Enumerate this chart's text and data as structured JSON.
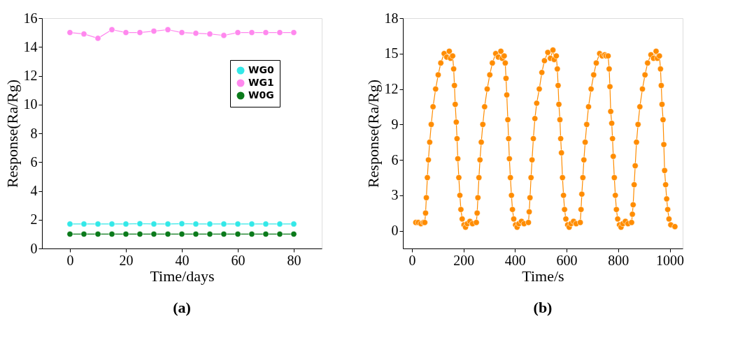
{
  "chart_data": [
    {
      "type": "line",
      "xlabel": "Time/days",
      "ylabel": "Response(Ra/Rg)",
      "x": [
        0,
        5,
        10,
        15,
        20,
        25,
        30,
        35,
        40,
        45,
        50,
        55,
        60,
        65,
        70,
        75,
        80
      ],
      "series": [
        {
          "name": "WG0",
          "color": "#33e8e8",
          "values": [
            1.7,
            1.7,
            1.7,
            1.7,
            1.7,
            1.72,
            1.7,
            1.7,
            1.72,
            1.7,
            1.7,
            1.7,
            1.7,
            1.7,
            1.7,
            1.7,
            1.7
          ]
        },
        {
          "name": "WG1",
          "color": "#ff88ee",
          "values": [
            15.0,
            14.9,
            14.6,
            15.2,
            15.0,
            15.0,
            15.1,
            15.2,
            15.0,
            14.95,
            14.9,
            14.8,
            15.0,
            15.0,
            15.0,
            15.0,
            15.0
          ]
        },
        {
          "name": "W0G",
          "color": "#0a7a1a",
          "values": [
            1.0,
            1.0,
            1.0,
            1.0,
            1.0,
            1.0,
            1.0,
            1.0,
            1.0,
            1.0,
            1.0,
            1.0,
            1.0,
            1.0,
            1.0,
            1.0,
            1.0
          ]
        }
      ],
      "xlim": [
        -10,
        90
      ],
      "xticks": [
        0,
        20,
        40,
        60,
        80
      ],
      "ylim": [
        0,
        16
      ],
      "yticks": [
        0,
        2,
        4,
        6,
        8,
        10,
        12,
        14,
        16
      ],
      "legend": "top right",
      "marker": "circle",
      "line_style": "solid",
      "grid": false,
      "annotations": [
        "(a)"
      ]
    },
    {
      "type": "line",
      "xlabel": "Time/s",
      "ylabel": "Response(Ra/Rg)",
      "x": [
        15,
        25,
        35,
        45,
        50,
        53,
        56,
        60,
        64,
        69,
        75,
        82,
        92,
        102,
        112,
        125,
        135,
        145,
        150,
        158,
        162,
        165,
        168,
        172,
        175,
        178,
        182,
        186,
        190,
        195,
        202,
        208,
        215,
        225,
        235,
        250,
        253,
        256,
        260,
        264,
        269,
        275,
        282,
        292,
        302,
        312,
        325,
        335,
        345,
        350,
        358,
        362,
        365,
        368,
        372,
        375,
        378,
        382,
        386,
        390,
        395,
        402,
        408,
        415,
        425,
        435,
        452,
        455,
        458,
        462,
        466,
        471,
        477,
        484,
        494,
        504,
        514,
        527,
        537,
        547,
        552,
        560,
        564,
        567,
        570,
        574,
        577,
        580,
        584,
        588,
        592,
        597,
        604,
        610,
        617,
        627,
        637,
        653,
        656,
        659,
        663,
        667,
        672,
        678,
        685,
        695,
        705,
        715,
        728,
        738,
        748,
        753,
        761,
        765,
        768,
        771,
        775,
        778,
        781,
        785,
        789,
        793,
        798,
        805,
        811,
        818,
        828,
        838,
        852,
        855,
        858,
        862,
        866,
        871,
        877,
        884,
        894,
        904,
        914,
        927,
        937,
        947,
        952,
        960,
        964,
        967,
        970,
        974,
        977,
        980,
        984,
        988,
        992,
        997,
        1004,
        1020
      ],
      "series": [
        {
          "color": "#ff8c00",
          "values": [
            0.7,
            0.7,
            0.6,
            0.7,
            0.7,
            1.5,
            2.8,
            4.5,
            6,
            7.5,
            9,
            10.5,
            12,
            13.2,
            14.2,
            15,
            14.7,
            15.2,
            14.6,
            14.8,
            13.7,
            12.3,
            10.7,
            9.2,
            7.8,
            6.1,
            4.5,
            3,
            1.8,
            1,
            0.5,
            0.3,
            0.6,
            0.8,
            0.6,
            0.7,
            1.5,
            2.8,
            4.5,
            6,
            7.5,
            9,
            10.5,
            12,
            13.2,
            14.2,
            15,
            14.7,
            15.2,
            14.6,
            14.8,
            14.2,
            12.9,
            11.5,
            9.4,
            7.8,
            6.1,
            4.5,
            3,
            1.8,
            1,
            0.5,
            0.3,
            0.6,
            0.8,
            0.6,
            0.7,
            1.6,
            2.8,
            4.5,
            6,
            7.8,
            9.5,
            10.8,
            12,
            13.4,
            14.4,
            15.1,
            14.6,
            15.3,
            14.5,
            14.8,
            13.7,
            12.3,
            10.7,
            9.4,
            7.8,
            6.6,
            4.5,
            3,
            1.8,
            1,
            0.5,
            0.3,
            0.6,
            0.8,
            0.6,
            0.7,
            1.8,
            3.1,
            4.5,
            6,
            7.5,
            9,
            10.5,
            12,
            13.2,
            14.2,
            15,
            14.8,
            14.9,
            14.8,
            14.8,
            13.7,
            12.2,
            10.1,
            9.1,
            7.8,
            6.3,
            4.5,
            3,
            1.8,
            1,
            0.5,
            0.3,
            0.6,
            0.8,
            0.6,
            0.7,
            1.4,
            2.2,
            3.9,
            5.5,
            7.5,
            9,
            10.5,
            12,
            13.2,
            14.2,
            14.9,
            14.6,
            15.2,
            14.6,
            14.8,
            13.7,
            12.3,
            10.7,
            9.4,
            7.3,
            5.1,
            3.9,
            2.7,
            1.8,
            1,
            0.5,
            0.35
          ]
        }
      ],
      "xlim": [
        -35,
        1050
      ],
      "xticks": [
        0,
        200,
        400,
        600,
        800,
        1000
      ],
      "ylim": [
        -1.5,
        18
      ],
      "yticks": [
        0,
        3,
        6,
        9,
        12,
        15,
        18
      ],
      "marker": "circle",
      "line_style": "solid",
      "grid": false,
      "annotations": [
        "(b)"
      ]
    }
  ]
}
